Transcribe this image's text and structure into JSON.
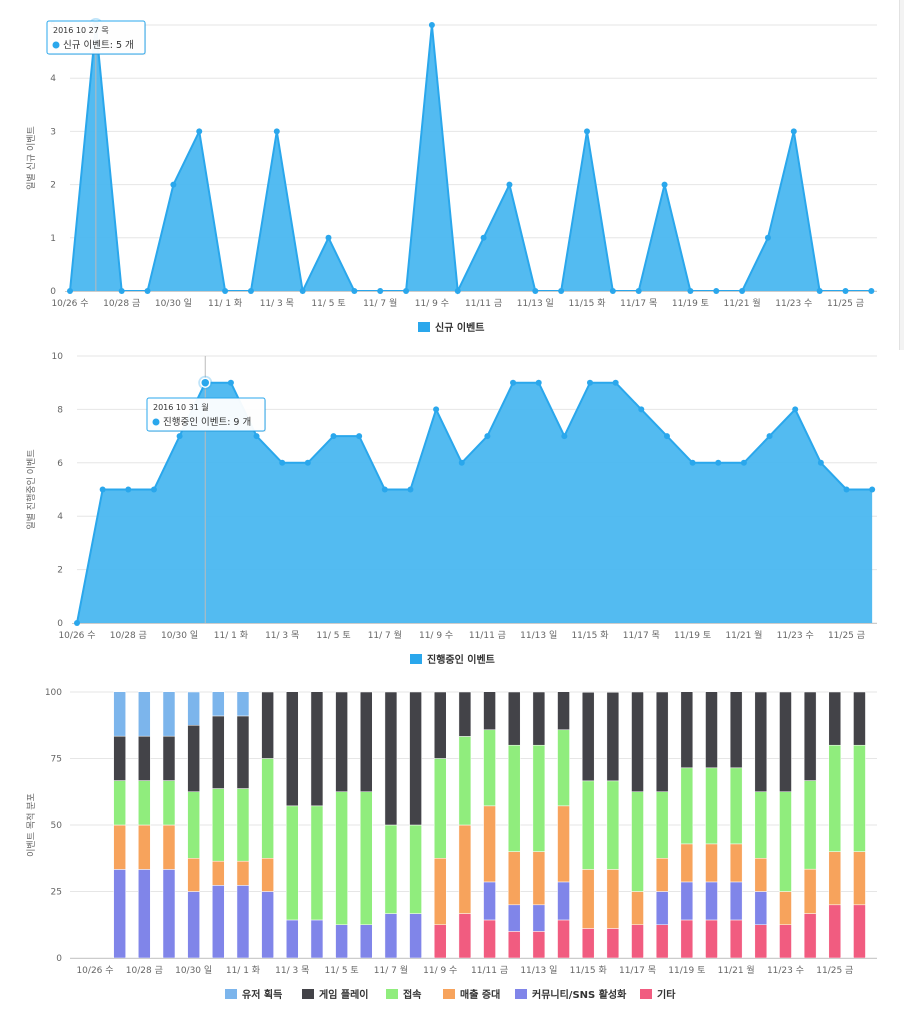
{
  "colors": {
    "area": "#2aa7ec",
    "area_fill": "#4ab7f0",
    "series": [
      "#7cb5ec",
      "#434348",
      "#90ed7d",
      "#f7a35c",
      "#8085e9",
      "#f15c80"
    ]
  },
  "chart_data": [
    {
      "type": "area",
      "ylabel": "일별 신규 이벤트",
      "ylim": [
        0,
        5
      ],
      "yticks": [
        "0",
        "1",
        "2",
        "3",
        "4",
        "5"
      ],
      "x_tick_labels": [
        "10/26 수",
        "10/28 금",
        "10/30 일",
        "11/ 1 화",
        "11/ 3 목",
        "11/ 5 토",
        "11/ 7 월",
        "11/ 9 수",
        "11/11 금",
        "11/13 일",
        "11/15 화",
        "11/17 목",
        "11/19 토",
        "11/21 월",
        "11/23 수",
        "11/25 금"
      ],
      "x": [
        "10/26",
        "10/27",
        "10/28",
        "10/29",
        "10/30",
        "10/31",
        "11/1",
        "11/2",
        "11/3",
        "11/4",
        "11/5",
        "11/6",
        "11/7",
        "11/8",
        "11/9",
        "11/10",
        "11/11",
        "11/12",
        "11/13",
        "11/14",
        "11/15",
        "11/16",
        "11/17",
        "11/18",
        "11/19",
        "11/20",
        "11/21",
        "11/22",
        "11/23",
        "11/24",
        "11/25",
        "11/26"
      ],
      "series": [
        {
          "name": "신규 이벤트",
          "values": [
            0,
            5,
            0,
            0,
            2,
            3,
            0,
            0,
            3,
            0,
            1,
            0,
            0,
            0,
            5,
            0,
            1,
            2,
            0,
            0,
            3,
            0,
            0,
            2,
            0,
            0,
            0,
            1,
            3,
            0,
            0,
            0
          ]
        }
      ],
      "legend": "bottom-center",
      "tooltip": {
        "index": 1,
        "date": "2016 10 27 목",
        "label": "신규 이벤트",
        "value_text": "5 개"
      }
    },
    {
      "type": "area",
      "ylabel": "일별 진행중인 이벤트",
      "ylim": [
        0,
        10
      ],
      "yticks": [
        "0",
        "2",
        "4",
        "6",
        "8",
        "10"
      ],
      "x_tick_labels": [
        "10/26 수",
        "10/28 금",
        "10/30 일",
        "11/ 1 화",
        "11/ 3 목",
        "11/ 5 토",
        "11/ 7 월",
        "11/ 9 수",
        "11/11 금",
        "11/13 일",
        "11/15 화",
        "11/17 목",
        "11/19 토",
        "11/21 월",
        "11/23 수",
        "11/25 금"
      ],
      "x": [
        "10/26",
        "10/27",
        "10/28",
        "10/29",
        "10/30",
        "10/31",
        "11/1",
        "11/2",
        "11/3",
        "11/4",
        "11/5",
        "11/6",
        "11/7",
        "11/8",
        "11/9",
        "11/10",
        "11/11",
        "11/12",
        "11/13",
        "11/14",
        "11/15",
        "11/16",
        "11/17",
        "11/18",
        "11/19",
        "11/20",
        "11/21",
        "11/22",
        "11/23",
        "11/24",
        "11/25",
        "11/26"
      ],
      "series": [
        {
          "name": "진행중인 이벤트",
          "values": [
            0,
            5,
            5,
            5,
            7,
            9,
            9,
            7,
            6,
            6,
            7,
            7,
            5,
            5,
            8,
            6,
            7,
            9,
            9,
            7,
            9,
            9,
            8,
            7,
            6,
            6,
            6,
            7,
            8,
            6,
            5,
            5
          ]
        }
      ],
      "legend": "bottom-center",
      "tooltip": {
        "index": 5,
        "date": "2016 10 31 월",
        "label": "진행중인 이벤트",
        "value_text": "9 개"
      }
    },
    {
      "type": "bar",
      "stacked": "percent",
      "ylabel": "이벤트 목적 분포",
      "ylim": [
        0,
        100
      ],
      "yticks": [
        "0",
        "25",
        "50",
        "75",
        "100"
      ],
      "x_tick_labels": [
        "10/26 수",
        "10/28 금",
        "10/30 일",
        "11/ 1 화",
        "11/ 3 목",
        "11/ 5 토",
        "11/ 7 월",
        "11/ 9 수",
        "11/11 금",
        "11/13 일",
        "11/15 화",
        "11/17 목",
        "11/19 토",
        "11/21 월",
        "11/23 수",
        "11/25 금"
      ],
      "x": [
        "10/26",
        "10/27",
        "10/28",
        "10/29",
        "10/30",
        "10/31",
        "11/1",
        "11/2",
        "11/3",
        "11/4",
        "11/5",
        "11/6",
        "11/7",
        "11/8",
        "11/9",
        "11/10",
        "11/11",
        "11/12",
        "11/13",
        "11/14",
        "11/15",
        "11/16",
        "11/17",
        "11/18",
        "11/19",
        "11/20",
        "11/21",
        "11/22",
        "11/23",
        "11/24",
        "11/25",
        "11/26"
      ],
      "series": [
        {
          "name": "유저 획득",
          "values": [
            0,
            16.7,
            16.7,
            16.7,
            12.5,
            9.1,
            9.1,
            0,
            0,
            0,
            0,
            0,
            0,
            0,
            0,
            0,
            0,
            0,
            0,
            0,
            0,
            0,
            0,
            0,
            0,
            0,
            0,
            0,
            0,
            0,
            0,
            0
          ]
        },
        {
          "name": "게임 플레이",
          "values": [
            0,
            16.7,
            16.7,
            16.7,
            25,
            27.3,
            27.3,
            25,
            42.9,
            42.9,
            37.5,
            37.5,
            50,
            50,
            25,
            16.7,
            14.3,
            20,
            20,
            14.3,
            33.3,
            33.3,
            37.5,
            37.5,
            28.6,
            28.6,
            28.6,
            37.5,
            37.5,
            33.3,
            20,
            20
          ]
        },
        {
          "name": "접속",
          "values": [
            0,
            16.7,
            16.7,
            16.7,
            25,
            27.3,
            27.3,
            37.5,
            42.9,
            42.9,
            50,
            50,
            33.3,
            33.3,
            37.5,
            33.3,
            28.6,
            40,
            40,
            28.6,
            33.3,
            33.3,
            37.5,
            25,
            28.6,
            28.6,
            28.6,
            25,
            37.5,
            33.3,
            40,
            40
          ]
        },
        {
          "name": "매출 증대",
          "values": [
            0,
            16.7,
            16.7,
            16.7,
            12.5,
            9.1,
            9.1,
            12.5,
            0,
            0,
            0,
            0,
            0,
            0,
            25,
            33.3,
            28.6,
            20,
            20,
            28.6,
            22.2,
            22.2,
            12.5,
            12.5,
            14.3,
            14.3,
            14.3,
            12.5,
            12.5,
            16.7,
            20,
            20
          ]
        },
        {
          "name": "커뮤니티/SNS 활성화",
          "values": [
            0,
            33.3,
            33.3,
            33.3,
            25,
            27.3,
            27.3,
            25,
            14.3,
            14.3,
            12.5,
            12.5,
            16.7,
            16.7,
            0,
            0,
            14.3,
            10,
            10,
            14.3,
            0,
            0,
            0,
            12.5,
            14.3,
            14.3,
            14.3,
            12.5,
            0,
            0,
            0,
            0
          ]
        },
        {
          "name": "기타",
          "values": [
            0,
            0,
            0,
            0,
            0,
            0,
            0,
            0,
            0,
            0,
            0,
            0,
            0,
            0,
            12.5,
            16.7,
            14.3,
            10,
            10,
            14.3,
            11.1,
            11.1,
            12.5,
            12.5,
            14.3,
            14.3,
            14.3,
            12.5,
            12.5,
            16.7,
            20,
            20
          ]
        }
      ],
      "legend": "bottom-center"
    }
  ]
}
